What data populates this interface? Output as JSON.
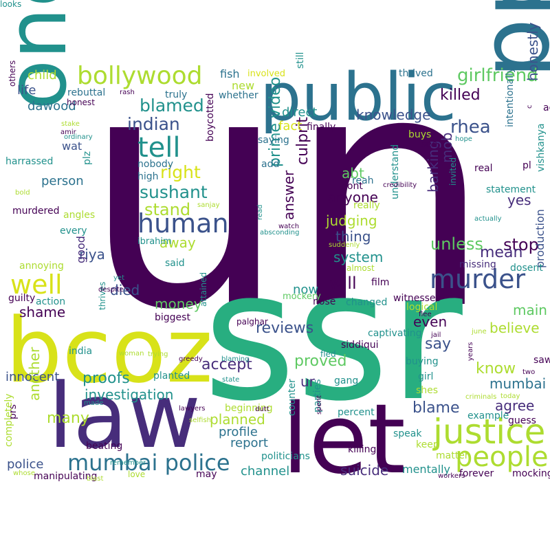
{
  "palette": {
    "darkpurple": "#440154",
    "indigo": "#472d7b",
    "blue": "#3b528b",
    "steel": "#2c728e",
    "teal": "#21918c",
    "green": "#28ae80",
    "lightgreen": "#5ec962",
    "lime": "#addc30",
    "yellow": "#d8e219"
  },
  "words": [
    {
      "text": "un",
      "color": "darkpurple"
    },
    {
      "text": "ssr",
      "color": "green"
    },
    {
      "text": "bcoz",
      "color": "yellow"
    },
    {
      "text": "law",
      "color": "indigo"
    },
    {
      "text": "let",
      "color": "darkpurple"
    },
    {
      "text": "public",
      "color": "steel"
    },
    {
      "text": "ppl",
      "color": "steel"
    },
    {
      "text": "one",
      "color": "teal"
    },
    {
      "text": "justice",
      "color": "lime"
    },
    {
      "text": "people",
      "color": "lime"
    },
    {
      "text": "mumbai police",
      "color": "steel"
    },
    {
      "text": "murder",
      "color": "blue"
    },
    {
      "text": "human",
      "color": "blue"
    },
    {
      "text": "tell",
      "color": "teal"
    },
    {
      "text": "bollywood",
      "color": "lime"
    },
    {
      "text": "well",
      "color": "yellow"
    },
    {
      "text": "sushant",
      "color": "teal"
    },
    {
      "text": "right",
      "color": "yellow"
    },
    {
      "text": "blamed",
      "color": "teal"
    },
    {
      "text": "indian",
      "color": "blue"
    },
    {
      "text": "girlfriend",
      "color": "lightgreen"
    },
    {
      "text": "rhea",
      "color": "blue"
    },
    {
      "text": "killed",
      "color": "darkpurple"
    },
    {
      "text": "honestly",
      "color": "blue"
    },
    {
      "text": "knowledge",
      "color": "blue"
    },
    {
      "text": "prime video",
      "color": "teal"
    },
    {
      "text": "culprit",
      "color": "darkpurple"
    },
    {
      "text": "answer",
      "color": "darkpurple"
    },
    {
      "text": "unless",
      "color": "lightgreen"
    },
    {
      "text": "stop",
      "color": "darkpurple"
    },
    {
      "text": "mean",
      "color": "indigo"
    },
    {
      "text": "yes",
      "color": "indigo"
    },
    {
      "text": "barking",
      "color": "indigo"
    },
    {
      "text": "mob",
      "color": "indigo"
    },
    {
      "text": "intentionally",
      "color": "steel"
    },
    {
      "text": "vishkanya",
      "color": "teal"
    },
    {
      "text": "production",
      "color": "blue"
    },
    {
      "text": "direct",
      "color": "teal"
    },
    {
      "text": "fact",
      "color": "yellow"
    },
    {
      "text": "person",
      "color": "steel"
    },
    {
      "text": "abt",
      "color": "lightgreen"
    },
    {
      "text": "anyone",
      "color": "darkpurple"
    },
    {
      "text": "judging",
      "color": "lime"
    },
    {
      "text": "thing",
      "color": "blue"
    },
    {
      "text": "system",
      "color": "teal"
    },
    {
      "text": "will",
      "color": "darkpurple"
    },
    {
      "text": "now",
      "color": "teal"
    },
    {
      "text": "stand",
      "color": "lime"
    },
    {
      "text": "away",
      "color": "lime"
    },
    {
      "text": "riya",
      "color": "blue"
    },
    {
      "text": "good",
      "color": "indigo"
    },
    {
      "text": "shame",
      "color": "darkpurple"
    },
    {
      "text": "died",
      "color": "blue"
    },
    {
      "text": "money",
      "color": "lightgreen"
    },
    {
      "text": "reviews",
      "color": "blue"
    },
    {
      "text": "even",
      "color": "darkpurple"
    },
    {
      "text": "say",
      "color": "blue"
    },
    {
      "text": "believe",
      "color": "lime"
    },
    {
      "text": "main",
      "color": "lightgreen"
    },
    {
      "text": "know",
      "color": "lime"
    },
    {
      "text": "mumbai",
      "color": "steel"
    },
    {
      "text": "agree",
      "color": "indigo"
    },
    {
      "text": "blame",
      "color": "blue"
    },
    {
      "text": "proved",
      "color": "lightgreen"
    },
    {
      "text": "accept",
      "color": "indigo"
    },
    {
      "text": "ur",
      "color": "indigo"
    },
    {
      "text": "proofs",
      "color": "teal"
    },
    {
      "text": "innocent",
      "color": "blue"
    },
    {
      "text": "investigation",
      "color": "teal"
    },
    {
      "text": "many",
      "color": "lime"
    },
    {
      "text": "another",
      "color": "lime"
    },
    {
      "text": "planned",
      "color": "lime"
    },
    {
      "text": "profile",
      "color": "steel"
    },
    {
      "text": "report",
      "color": "steel"
    },
    {
      "text": "police",
      "color": "blue"
    },
    {
      "text": "channel",
      "color": "teal"
    },
    {
      "text": "suicide",
      "color": "indigo"
    },
    {
      "text": "mentally",
      "color": "teal"
    },
    {
      "text": "dawood",
      "color": "steel"
    },
    {
      "text": "life",
      "color": "blue"
    },
    {
      "text": "child",
      "color": "lime"
    },
    {
      "text": "wat",
      "color": "blue"
    },
    {
      "text": "new",
      "color": "lime"
    },
    {
      "text": "fish",
      "color": "steel"
    },
    {
      "text": "involved",
      "color": "yellow"
    },
    {
      "text": "thrived",
      "color": "steel"
    },
    {
      "text": "rebuttal",
      "color": "steel"
    },
    {
      "text": "truly",
      "color": "steel"
    },
    {
      "text": "whether",
      "color": "steel"
    },
    {
      "text": "still",
      "color": "teal"
    },
    {
      "text": "boycotted",
      "color": "darkpurple"
    },
    {
      "text": "harrassed",
      "color": "teal"
    },
    {
      "text": "murdered",
      "color": "darkpurple"
    },
    {
      "text": "angles",
      "color": "lime"
    },
    {
      "text": "every",
      "color": "teal"
    },
    {
      "text": "annoying",
      "color": "lime"
    },
    {
      "text": "guilty",
      "color": "darkpurple"
    },
    {
      "text": "action",
      "color": "teal"
    },
    {
      "text": "biggest",
      "color": "darkpurple"
    },
    {
      "text": "attained",
      "color": "teal"
    },
    {
      "text": "planted",
      "color": "teal"
    },
    {
      "text": "ibrahim",
      "color": "teal"
    },
    {
      "text": "said",
      "color": "teal"
    },
    {
      "text": "high",
      "color": "steel"
    },
    {
      "text": "nobody",
      "color": "steel"
    },
    {
      "text": "saying",
      "color": "steel"
    },
    {
      "text": "add",
      "color": "steel"
    },
    {
      "text": "reah",
      "color": "steel"
    },
    {
      "text": "dont",
      "color": "darkpurple"
    },
    {
      "text": "really",
      "color": "lime"
    },
    {
      "text": "understand",
      "color": "teal"
    },
    {
      "text": "finally",
      "color": "darkpurple"
    },
    {
      "text": "buys",
      "color": "lime"
    },
    {
      "text": "see",
      "color": "darkpurple"
    },
    {
      "text": "real",
      "color": "darkpurple"
    },
    {
      "text": "statement",
      "color": "teal"
    },
    {
      "text": "missing",
      "color": "indigo"
    },
    {
      "text": "dosent",
      "color": "teal"
    },
    {
      "text": "film",
      "color": "darkpurple"
    },
    {
      "text": "witnesses",
      "color": "darkpurple"
    },
    {
      "text": "logical",
      "color": "lime"
    },
    {
      "text": "mockery",
      "color": "lightgreen"
    },
    {
      "text": "nose",
      "color": "darkpurple"
    },
    {
      "text": "changed",
      "color": "teal"
    },
    {
      "text": "captivating",
      "color": "teal"
    },
    {
      "text": "siddiqui",
      "color": "darkpurple"
    },
    {
      "text": "buying",
      "color": "teal"
    },
    {
      "text": "gang",
      "color": "teal"
    },
    {
      "text": "shes",
      "color": "lime"
    },
    {
      "text": "girl",
      "color": "teal"
    },
    {
      "text": "percent",
      "color": "teal"
    },
    {
      "text": "beginning",
      "color": "lime"
    },
    {
      "text": "guess",
      "color": "darkpurple"
    },
    {
      "text": "example",
      "color": "teal"
    },
    {
      "text": "speak",
      "color": "teal"
    },
    {
      "text": "keep",
      "color": "lime"
    },
    {
      "text": "matter",
      "color": "lime"
    },
    {
      "text": "killing",
      "color": "darkpurple"
    },
    {
      "text": "forever",
      "color": "darkpurple"
    },
    {
      "text": "mocking",
      "color": "darkpurple"
    },
    {
      "text": "counter",
      "color": "teal"
    },
    {
      "text": "parties",
      "color": "teal"
    },
    {
      "text": "politicians",
      "color": "teal"
    },
    {
      "text": "may",
      "color": "darkpurple"
    },
    {
      "text": "beating",
      "color": "darkpurple"
    },
    {
      "text": "prs",
      "color": "darkpurple"
    },
    {
      "text": "completely",
      "color": "lime"
    },
    {
      "text": "manipulating",
      "color": "darkpurple"
    },
    {
      "text": "others",
      "color": "darkpurple"
    },
    {
      "text": "honest",
      "color": "darkpurple"
    },
    {
      "text": "plz",
      "color": "teal"
    },
    {
      "text": "thrives",
      "color": "teal"
    },
    {
      "text": "india",
      "color": "teal"
    },
    {
      "text": "love",
      "color": "lime"
    },
    {
      "text": "saw",
      "color": "darkpurple"
    },
    {
      "text": "pl",
      "color": "darkpurple"
    },
    {
      "text": "aew",
      "color": "darkpurple"
    },
    {
      "text": "c",
      "color": "darkpurple"
    },
    {
      "text": "invited",
      "color": "teal"
    },
    {
      "text": "june",
      "color": "lime"
    },
    {
      "text": "jail",
      "color": "darkpurple"
    },
    {
      "text": "flee",
      "color": "darkpurple"
    },
    {
      "text": "two",
      "color": "darkpurple"
    },
    {
      "text": "years",
      "color": "darkpurple"
    },
    {
      "text": "today",
      "color": "lime"
    },
    {
      "text": "criminals",
      "color": "lime"
    },
    {
      "text": "workers",
      "color": "darkpurple"
    },
    {
      "text": "whose",
      "color": "lime"
    },
    {
      "text": "blast",
      "color": "lime"
    },
    {
      "text": "remember",
      "color": "teal"
    },
    {
      "text": "selfish",
      "color": "lime"
    },
    {
      "text": "lawyers",
      "color": "darkpurple"
    },
    {
      "text": "dutt",
      "color": "darkpurple"
    },
    {
      "text": "spent",
      "color": "darkpurple"
    },
    {
      "text": "trying",
      "color": "lime"
    },
    {
      "text": "greedy",
      "color": "darkpurple"
    },
    {
      "text": "blaming",
      "color": "teal"
    },
    {
      "text": "state",
      "color": "teal"
    },
    {
      "text": "made",
      "color": "teal"
    },
    {
      "text": "woman",
      "color": "lime"
    },
    {
      "text": "yet",
      "color": "teal"
    },
    {
      "text": "despite",
      "color": "darkpurple"
    },
    {
      "text": "palghar",
      "color": "darkpurple"
    },
    {
      "text": "almost",
      "color": "lime"
    },
    {
      "text": "suddenly",
      "color": "lime"
    },
    {
      "text": "actually",
      "color": "teal"
    },
    {
      "text": "hope",
      "color": "teal"
    },
    {
      "text": "credibility",
      "color": "darkpurple"
    },
    {
      "text": "watch",
      "color": "darkpurple"
    },
    {
      "text": "read",
      "color": "teal"
    },
    {
      "text": "absconding",
      "color": "teal"
    },
    {
      "text": "bold",
      "color": "lime"
    },
    {
      "text": "sanjay",
      "color": "lime"
    },
    {
      "text": "stake",
      "color": "lime"
    },
    {
      "text": "amir",
      "color": "darkpurple"
    },
    {
      "text": "ordinary",
      "color": "teal"
    },
    {
      "text": "rash",
      "color": "darkpurple"
    },
    {
      "text": "fled",
      "color": "teal"
    },
    {
      "text": "looks",
      "color": "teal"
    }
  ]
}
